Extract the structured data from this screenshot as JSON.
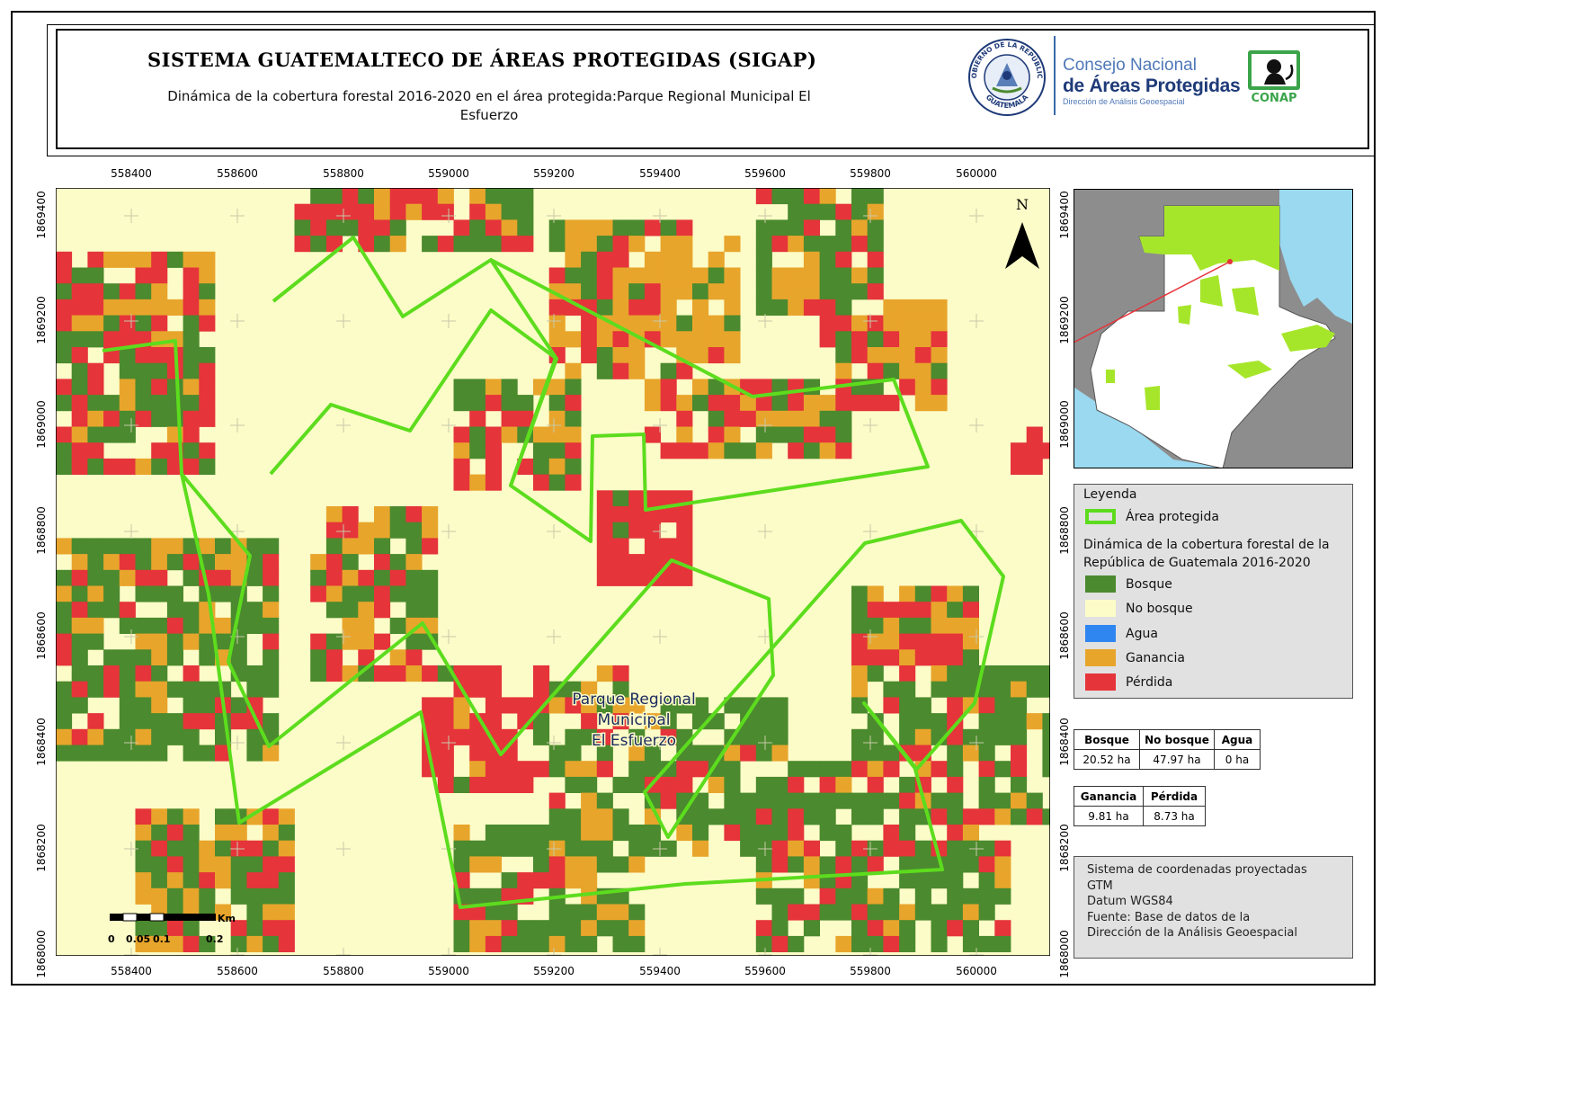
{
  "title": "SISTEMA GUATEMALTECO DE ÁREAS PROTEGIDAS  (SIGAP)",
  "subtitle": "Dinámica de la cobertura forestal 2016-2020 en el área protegida:Parque Regional Municipal El Esfuerzo",
  "logos": {
    "seal_text_top": "GOBIERNO DE LA REPÚBLICA",
    "seal_text_bottom": "GUATEMALA",
    "conap_line1": "Consejo Nacional",
    "conap_line2": "de Áreas Protegidas",
    "conap_line3": "Dirección de Análisis Geoespacial",
    "conap_badge": "CONAP"
  },
  "map": {
    "north_label": "N",
    "area_label": [
      "Parque Regional",
      "Municipal",
      "El Esfuerzo"
    ],
    "x_ticks": [
      "558400",
      "558600",
      "558800",
      "559000",
      "559200",
      "559400",
      "559600",
      "559800",
      "560000"
    ],
    "y_ticks": [
      "1869400",
      "1869200",
      "1869000",
      "1868800",
      "1868600",
      "1868400",
      "1868200",
      "1868000"
    ],
    "colors": {
      "bosque": "#4b8a2e",
      "no_bosque": "#fcfcc8",
      "agua": "#2f86f0",
      "ganancia": "#e8a52c",
      "perdida": "#e5343a",
      "area_protegida": "#5ddc1e"
    }
  },
  "scale_bar": {
    "unit": "Km",
    "labels": [
      "0",
      "0.05",
      "0.1",
      "0.2"
    ]
  },
  "legend": {
    "title": "Leyenda",
    "protected_area": "Área protegida",
    "heading": "Dinámica de la cobertura forestal de la República de Guatemala 2016-2020",
    "items": [
      {
        "label": "Bosque",
        "color": "#4b8a2e"
      },
      {
        "label": "No bosque",
        "color": "#fcfcc8"
      },
      {
        "label": "Agua",
        "color": "#2f86f0"
      },
      {
        "label": "Ganancia",
        "color": "#e8a52c"
      },
      {
        "label": "Pérdida",
        "color": "#e5343a"
      }
    ]
  },
  "stats1": {
    "headers": [
      "Bosque",
      "No bosque",
      "Agua"
    ],
    "values": [
      "20.52 ha",
      "47.97 ha",
      "0 ha"
    ]
  },
  "stats2": {
    "headers": [
      "Ganancia",
      "Pérdida"
    ],
    "values": [
      "9.81 ha",
      "8.73 ha"
    ]
  },
  "coordinate_info": [
    "Sistema de coordenadas proyectadas",
    "GTM",
    "Datum WGS84",
    "Fuente: Base de datos de la",
    "Dirección de la Análisis Geoespacial"
  ]
}
